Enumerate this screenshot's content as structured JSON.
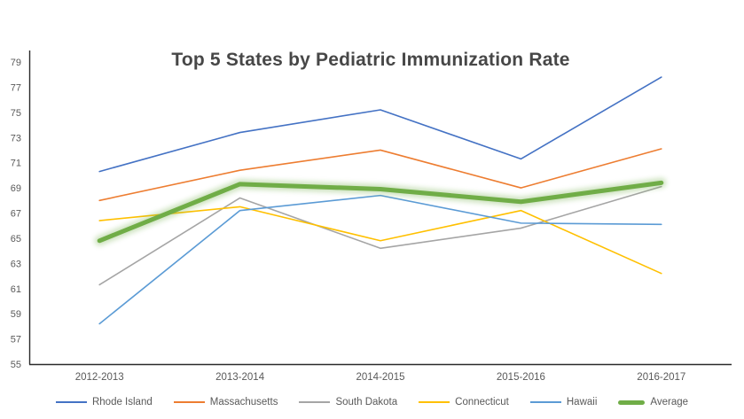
{
  "title": "Top 5 States by Pediatric Immunization Rate",
  "colors": {
    "background": "#ffffff",
    "title_text": "#474747",
    "axis_line": "#2b2b2b",
    "tick_text": "#595959",
    "average_glow": "#70AD47"
  },
  "chart_data": {
    "type": "line",
    "title": "Top 5 States by Pediatric Immunization Rate",
    "categories": [
      "2012-2013",
      "2013-2014",
      "2014-2015",
      "2015-2016",
      "2016-2017"
    ],
    "series": [
      {
        "name": "Rhode Island",
        "color": "#4472C4",
        "width": 1.6,
        "glow": false,
        "values": [
          70.3,
          73.4,
          75.2,
          71.3,
          77.8
        ]
      },
      {
        "name": "Massachusetts",
        "color": "#ED7D31",
        "width": 1.6,
        "glow": false,
        "values": [
          68.0,
          70.4,
          72.0,
          69.0,
          72.1
        ]
      },
      {
        "name": "South Dakota",
        "color": "#A5A5A5",
        "width": 1.6,
        "glow": false,
        "values": [
          61.3,
          68.2,
          64.2,
          65.8,
          69.1
        ]
      },
      {
        "name": "Connecticut",
        "color": "#FFC000",
        "width": 1.6,
        "glow": false,
        "values": [
          66.4,
          67.5,
          64.8,
          67.2,
          62.2
        ]
      },
      {
        "name": "Hawaii",
        "color": "#5B9BD5",
        "width": 1.6,
        "glow": false,
        "values": [
          58.2,
          67.2,
          68.4,
          66.2,
          66.1
        ]
      },
      {
        "name": "Average",
        "color": "#70AD47",
        "width": 5,
        "glow": true,
        "values": [
          64.8,
          69.3,
          68.9,
          67.9,
          69.4
        ]
      }
    ],
    "ylim": [
      55,
      79
    ],
    "yticks": [
      55,
      57,
      59,
      61,
      63,
      65,
      67,
      69,
      71,
      73,
      75,
      77,
      79
    ],
    "ytick_step": 2,
    "xlabel": "",
    "ylabel": "",
    "grid": false,
    "legend_position": "bottom"
  }
}
